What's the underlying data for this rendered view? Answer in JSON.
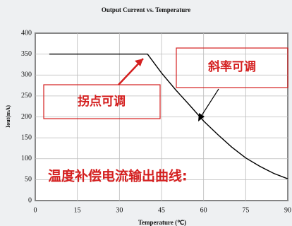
{
  "chart_data": {
    "type": "line",
    "title": "Output Current vs. Temperature",
    "x_label": "Temperature (℃)",
    "y_label": "Iout(mA)",
    "x": [
      5,
      40,
      45,
      50,
      55,
      60,
      65,
      70,
      75,
      80,
      85,
      90
    ],
    "values": [
      350,
      350,
      305,
      265,
      228,
      190,
      158,
      128,
      102,
      82,
      65,
      52
    ],
    "color": "#000000",
    "xlim": [
      0,
      90
    ],
    "xticks": [
      0,
      15,
      30,
      45,
      60,
      75,
      90
    ],
    "ylim": [
      0,
      400
    ],
    "yticks": [
      0,
      50,
      100,
      150,
      200,
      250,
      300,
      350,
      400
    ],
    "grid": true,
    "annotations": [
      "拐点可调",
      "斜率可调",
      "温度补偿电流输出曲线:"
    ]
  }
}
